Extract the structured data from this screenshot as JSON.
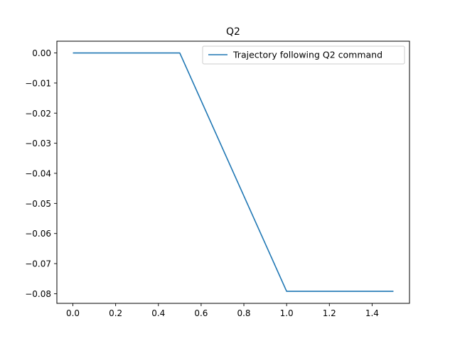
{
  "chart_data": {
    "type": "line",
    "title": "Q2",
    "xlabel": "",
    "ylabel": "",
    "xlim": [
      -0.075,
      1.575
    ],
    "ylim": [
      -0.0832,
      0.0039
    ],
    "xticks": [
      0.0,
      0.2,
      0.4,
      0.6,
      0.8,
      1.0,
      1.2,
      1.4
    ],
    "xtick_labels": [
      "0.0",
      "0.2",
      "0.4",
      "0.6",
      "0.8",
      "1.0",
      "1.2",
      "1.4"
    ],
    "yticks": [
      0.0,
      -0.01,
      -0.02,
      -0.03,
      -0.04,
      -0.05,
      -0.06,
      -0.07,
      -0.08
    ],
    "ytick_labels": [
      "0.00",
      "−0.01",
      "−0.02",
      "−0.03",
      "−0.04",
      "−0.05",
      "−0.06",
      "−0.07",
      "−0.08"
    ],
    "grid": false,
    "legend_position": "upper-right",
    "series": [
      {
        "name": "Trajectory following Q2 command",
        "color": "#1f77b4",
        "x": [
          0.0,
          0.5,
          1.0,
          1.5
        ],
        "y": [
          0.0,
          0.0,
          -0.0792,
          -0.0792
        ]
      }
    ]
  }
}
